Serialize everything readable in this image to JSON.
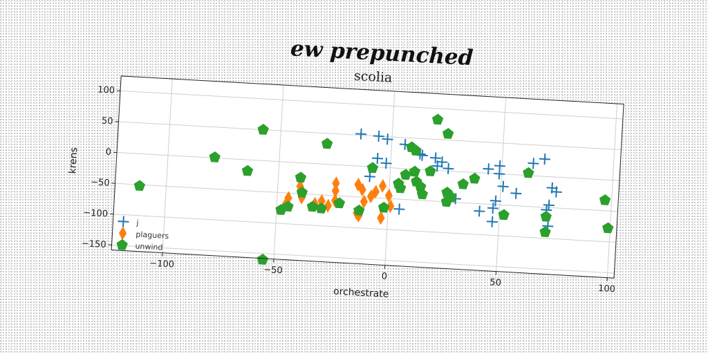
{
  "page": {
    "heading": "ew prepunched"
  },
  "chart_data": {
    "type": "scatter",
    "title": "scolia",
    "xlabel": "orchestrate",
    "ylabel": "krens",
    "xlim": [
      -123,
      103
    ],
    "ylim": [
      -158,
      124
    ],
    "xticks": [
      -100,
      -50,
      0,
      50,
      100
    ],
    "yticks": [
      100,
      50,
      0,
      -50,
      -100,
      -150
    ],
    "grid": true,
    "legend_position": "lower-left",
    "series": [
      {
        "name": "j",
        "marker": "plus",
        "color": "#1f77b4",
        "points": [
          [
            -14,
            52
          ],
          [
            -6,
            50
          ],
          [
            -2,
            46
          ],
          [
            6,
            39
          ],
          [
            10,
            33
          ],
          [
            13,
            25
          ],
          [
            14,
            23
          ],
          [
            20,
            20
          ],
          [
            23,
            14
          ],
          [
            -6,
            14
          ],
          [
            -2,
            7
          ],
          [
            21,
            7
          ],
          [
            26,
            4
          ],
          [
            44,
            7
          ],
          [
            49,
            13
          ],
          [
            49,
            0
          ],
          [
            51,
            -20
          ],
          [
            57,
            -30
          ],
          [
            64,
            20
          ],
          [
            69,
            28
          ],
          [
            73,
            -18
          ],
          [
            75,
            -24
          ],
          [
            72,
            -46
          ],
          [
            71,
            -54
          ],
          [
            72,
            -80
          ],
          [
            41,
            -62
          ],
          [
            47,
            -56
          ],
          [
            48,
            -44
          ],
          [
            47,
            -78
          ],
          [
            30,
            -44
          ],
          [
            5,
            -66
          ],
          [
            -9,
            -16
          ]
        ]
      },
      {
        "name": "plaguers",
        "marker": "diamond",
        "color": "#ff7f0e",
        "points": [
          [
            -45,
            -58
          ],
          [
            -46,
            -68
          ],
          [
            -39,
            -56
          ],
          [
            -40,
            -38
          ],
          [
            -33,
            -65
          ],
          [
            -30,
            -60
          ],
          [
            -27,
            -67
          ],
          [
            -24,
            -58
          ],
          [
            -24,
            -42
          ],
          [
            -24,
            -30
          ],
          [
            -14,
            -30
          ],
          [
            -12,
            -38
          ],
          [
            -11,
            -57
          ],
          [
            -13,
            -80
          ],
          [
            -14,
            -76
          ],
          [
            -8,
            -48
          ],
          [
            -6,
            -40
          ],
          [
            -3,
            -30
          ],
          [
            0,
            -45
          ],
          [
            1,
            -62
          ],
          [
            -3,
            -82
          ]
        ]
      },
      {
        "name": "unwind",
        "marker": "pentagon",
        "color": "#2ca02c",
        "points": [
          [
            -112,
            -52
          ],
          [
            -79,
            1
          ],
          [
            -64,
            -18
          ],
          [
            -58,
            50
          ],
          [
            -48,
            -78
          ],
          [
            -45,
            -72
          ],
          [
            -40,
            -24
          ],
          [
            -39,
            -48
          ],
          [
            -34,
            -70
          ],
          [
            -30,
            -72
          ],
          [
            -29,
            33
          ],
          [
            -22,
            -62
          ],
          [
            -13,
            -72
          ],
          [
            -8,
            -2
          ],
          [
            -2,
            -65
          ],
          [
            4,
            -25
          ],
          [
            5,
            -32
          ],
          [
            7,
            -10
          ],
          [
            9,
            35
          ],
          [
            11,
            30
          ],
          [
            11,
            -4
          ],
          [
            12,
            -20
          ],
          [
            14,
            -28
          ],
          [
            15,
            -40
          ],
          [
            18,
            -2
          ],
          [
            20,
            82
          ],
          [
            25,
            60
          ],
          [
            26,
            -35
          ],
          [
            26,
            -50
          ],
          [
            28,
            -42
          ],
          [
            33,
            -20
          ],
          [
            38,
            -10
          ],
          [
            52,
            -66
          ],
          [
            62,
            4
          ],
          [
            71,
            -65
          ],
          [
            71,
            -90
          ],
          [
            97,
            -33
          ],
          [
            99,
            -78
          ],
          [
            -55,
            -160
          ]
        ]
      }
    ]
  }
}
